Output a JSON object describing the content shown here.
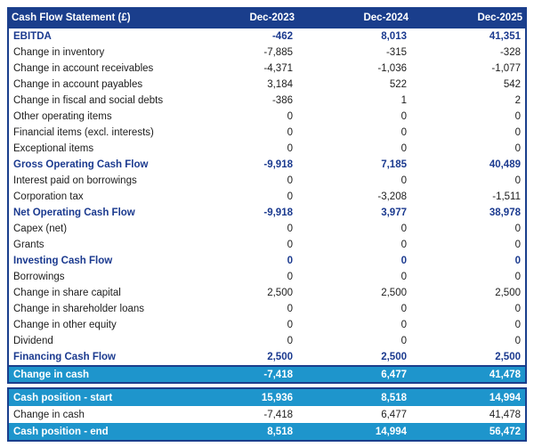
{
  "colors": {
    "header_navy": "#1a3e8c",
    "summary_text_navy": "#1b3a8f",
    "highlight_cyan": "#1e95cc",
    "body_text": "#1c1c1c",
    "white": "#ffffff"
  },
  "main_table": {
    "title": "Cash Flow Statement (£)",
    "columns": [
      "Dec-2023",
      "Dec-2024",
      "Dec-2025"
    ],
    "rows": [
      {
        "label": "EBITDA",
        "values": [
          "-462",
          "8,013",
          "41,351"
        ],
        "style": "summary"
      },
      {
        "label": "Change in inventory",
        "values": [
          "-7,885",
          "-315",
          "-328"
        ],
        "style": "normal"
      },
      {
        "label": "Change in account receivables",
        "values": [
          "-4,371",
          "-1,036",
          "-1,077"
        ],
        "style": "normal"
      },
      {
        "label": "Change in account payables",
        "values": [
          "3,184",
          "522",
          "542"
        ],
        "style": "normal"
      },
      {
        "label": "Change in fiscal and social debts",
        "values": [
          "-386",
          "1",
          "2"
        ],
        "style": "normal"
      },
      {
        "label": "Other operating items",
        "values": [
          "0",
          "0",
          "0"
        ],
        "style": "normal"
      },
      {
        "label": "Financial items (excl. interests)",
        "values": [
          "0",
          "0",
          "0"
        ],
        "style": "normal"
      },
      {
        "label": "Exceptional items",
        "values": [
          "0",
          "0",
          "0"
        ],
        "style": "normal"
      },
      {
        "label": "Gross Operating Cash Flow",
        "values": [
          "-9,918",
          "7,185",
          "40,489"
        ],
        "style": "summary"
      },
      {
        "label": "Interest paid on borrowings",
        "values": [
          "0",
          "0",
          "0"
        ],
        "style": "normal"
      },
      {
        "label": "Corporation tax",
        "values": [
          "0",
          "-3,208",
          "-1,511"
        ],
        "style": "normal"
      },
      {
        "label": "Net Operating Cash Flow",
        "values": [
          "-9,918",
          "3,977",
          "38,978"
        ],
        "style": "summary"
      },
      {
        "label": "Capex (net)",
        "values": [
          "0",
          "0",
          "0"
        ],
        "style": "normal"
      },
      {
        "label": "Grants",
        "values": [
          "0",
          "0",
          "0"
        ],
        "style": "normal"
      },
      {
        "label": "Investing Cash Flow",
        "values": [
          "0",
          "0",
          "0"
        ],
        "style": "summary"
      },
      {
        "label": "Borrowings",
        "values": [
          "0",
          "0",
          "0"
        ],
        "style": "normal"
      },
      {
        "label": "Change in share capital",
        "values": [
          "2,500",
          "2,500",
          "2,500"
        ],
        "style": "normal"
      },
      {
        "label": "Change in shareholder loans",
        "values": [
          "0",
          "0",
          "0"
        ],
        "style": "normal"
      },
      {
        "label": "Change in other equity",
        "values": [
          "0",
          "0",
          "0"
        ],
        "style": "normal"
      },
      {
        "label": "Dividend",
        "values": [
          "0",
          "0",
          "0"
        ],
        "style": "normal"
      },
      {
        "label": "Financing Cash Flow",
        "values": [
          "2,500",
          "2,500",
          "2,500"
        ],
        "style": "summary"
      },
      {
        "label": "Change in cash",
        "values": [
          "-7,418",
          "6,477",
          "41,478"
        ],
        "style": "highlight"
      }
    ]
  },
  "cash_position_table": {
    "rows": [
      {
        "label": "Cash position - start",
        "values": [
          "15,936",
          "8,518",
          "14,994"
        ],
        "style": "highlight"
      },
      {
        "label": "Change in cash",
        "values": [
          "-7,418",
          "6,477",
          "41,478"
        ],
        "style": "normal"
      },
      {
        "label": "Cash position - end",
        "values": [
          "8,518",
          "14,994",
          "56,472"
        ],
        "style": "highlight"
      }
    ]
  },
  "chart_data": {
    "type": "table",
    "title": "Cash Flow Statement (£)",
    "columns": [
      "Dec-2023",
      "Dec-2024",
      "Dec-2025"
    ],
    "rows": [
      {
        "label": "EBITDA",
        "values": [
          -462,
          8013,
          41351
        ]
      },
      {
        "label": "Change in inventory",
        "values": [
          -7885,
          -315,
          -328
        ]
      },
      {
        "label": "Change in account receivables",
        "values": [
          -4371,
          -1036,
          -1077
        ]
      },
      {
        "label": "Change in account payables",
        "values": [
          3184,
          522,
          542
        ]
      },
      {
        "label": "Change in fiscal and social debts",
        "values": [
          -386,
          1,
          2
        ]
      },
      {
        "label": "Other operating items",
        "values": [
          0,
          0,
          0
        ]
      },
      {
        "label": "Financial items (excl. interests)",
        "values": [
          0,
          0,
          0
        ]
      },
      {
        "label": "Exceptional items",
        "values": [
          0,
          0,
          0
        ]
      },
      {
        "label": "Gross Operating Cash Flow",
        "values": [
          -9918,
          7185,
          40489
        ]
      },
      {
        "label": "Interest paid on borrowings",
        "values": [
          0,
          0,
          0
        ]
      },
      {
        "label": "Corporation tax",
        "values": [
          0,
          -3208,
          -1511
        ]
      },
      {
        "label": "Net Operating Cash Flow",
        "values": [
          -9918,
          3977,
          38978
        ]
      },
      {
        "label": "Capex (net)",
        "values": [
          0,
          0,
          0
        ]
      },
      {
        "label": "Grants",
        "values": [
          0,
          0,
          0
        ]
      },
      {
        "label": "Investing Cash Flow",
        "values": [
          0,
          0,
          0
        ]
      },
      {
        "label": "Borrowings",
        "values": [
          0,
          0,
          0
        ]
      },
      {
        "label": "Change in share capital",
        "values": [
          2500,
          2500,
          2500
        ]
      },
      {
        "label": "Change in shareholder loans",
        "values": [
          0,
          0,
          0
        ]
      },
      {
        "label": "Change in other equity",
        "values": [
          0,
          0,
          0
        ]
      },
      {
        "label": "Dividend",
        "values": [
          0,
          0,
          0
        ]
      },
      {
        "label": "Financing Cash Flow",
        "values": [
          2500,
          2500,
          2500
        ]
      },
      {
        "label": "Change in cash",
        "values": [
          -7418,
          6477,
          41478
        ]
      },
      {
        "label": "Cash position - start",
        "values": [
          15936,
          8518,
          14994
        ]
      },
      {
        "label": "Change in cash",
        "values": [
          -7418,
          6477,
          41478
        ]
      },
      {
        "label": "Cash position - end",
        "values": [
          8518,
          14994,
          56472
        ]
      }
    ]
  }
}
